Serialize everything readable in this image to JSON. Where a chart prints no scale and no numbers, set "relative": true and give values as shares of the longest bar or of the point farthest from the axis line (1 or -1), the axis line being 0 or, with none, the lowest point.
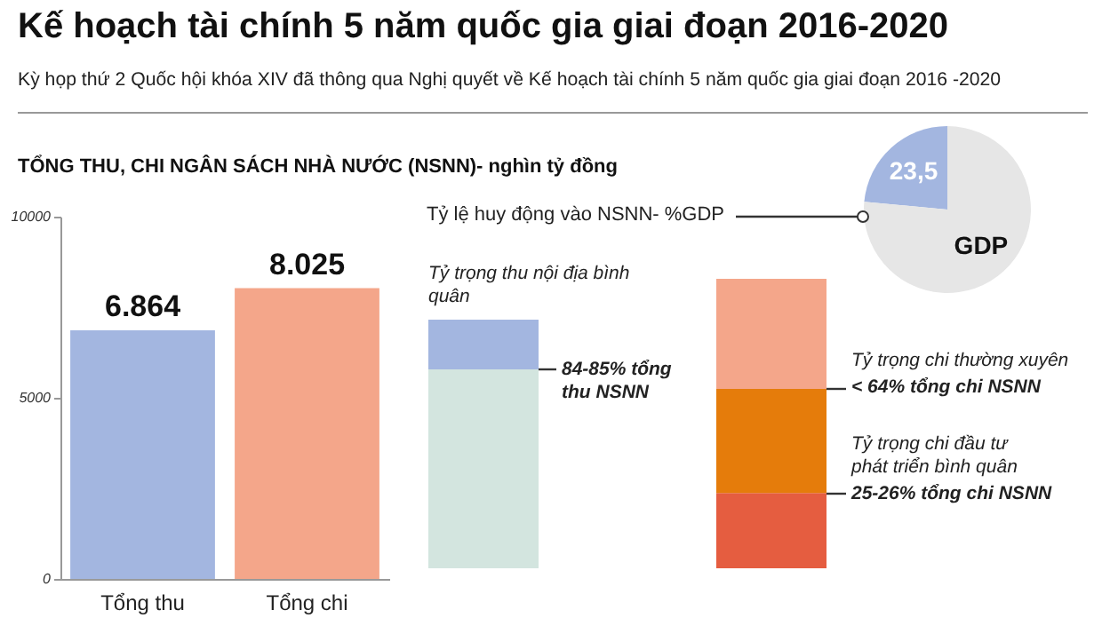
{
  "chart_data": [
    {
      "type": "bar",
      "title": "Kế hoạch tài chính 5 năm quốc gia giai đoạn 2016-2020",
      "subtitle": "Kỳ họp thứ 2 Quốc hội khóa XIV đã thông qua Nghị quyết về Kế hoạch tài chính 5 năm quốc gia giai đoạn 2016 -2020",
      "annotations": [
        "TỔNG THU, CHI NGÂN SÁCH NHÀ NƯỚC (NSNN)- nghìn tỷ đồng"
      ],
      "categories": [
        "Tổng thu",
        "Tổng chi"
      ],
      "values": [
        6864,
        8025
      ],
      "colors": [
        "#a3b6e0",
        "#f4a68a"
      ],
      "value_labels": [
        "6.864",
        "8.025"
      ],
      "ylim": [
        0,
        10000
      ],
      "yticks": [
        0,
        5000,
        10000
      ]
    },
    {
      "type": "bar",
      "stacked": true,
      "relative": true,
      "categories": [
        null
      ],
      "series": [
        {
          "color": "#d3e5df",
          "values": [
            0.8
          ]
        },
        {
          "color": "#a3b6e0",
          "values": [
            0.2
          ]
        }
      ],
      "annotations": [
        "Tỷ trọng thu nội địa bình quân",
        "84-85% tổng thu NSNN"
      ]
    },
    {
      "type": "bar",
      "stacked": true,
      "relative": true,
      "categories": [
        null
      ],
      "series": [
        {
          "color": "#e55d40",
          "values": [
            0.26
          ]
        },
        {
          "color": "#e57c0b",
          "values": [
            0.36
          ]
        },
        {
          "color": "#f4a68a",
          "values": [
            0.38
          ]
        }
      ],
      "annotations": [
        "Tỷ trọng chi thường xuyên",
        "< 64% tổng chi NSNN",
        "Tỷ trọng chi đầu tư phát triển bình quân",
        "25-26% tổng chi NSNN"
      ]
    },
    {
      "type": "pie",
      "categories": [
        null,
        "GDP"
      ],
      "values": [
        23.5,
        76.5
      ],
      "colors": [
        "#a3b6e0",
        "#e6e6e6"
      ],
      "value_labels": [
        "23,5",
        null
      ],
      "annotations": [
        "Tỷ lệ huy động vào NSNN- %GDP"
      ]
    }
  ]
}
